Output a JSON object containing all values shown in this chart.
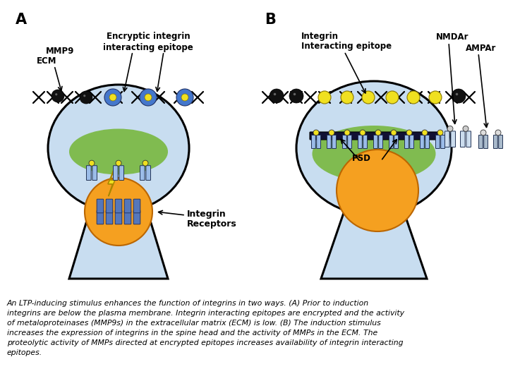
{
  "figure_width": 7.2,
  "figure_height": 5.4,
  "dpi": 100,
  "background_color": "#ffffff",
  "caption_line1": "An LTP-inducing stimulus enhances the function of integrins in two ways. (A) Prior to induction",
  "caption_line2": "integrins are below the plasma membrane. Integrin interacting epitopes are encrypted and the activity",
  "caption_line3": "of metaloproteinases (MMP9s) in the extracellular matrix (ECM) is low. (B) The induction stimulus",
  "caption_line4": "increases the expression of integrins in the spine head and the activity of MMPs in the ECM. The",
  "caption_line5": "proteolytic activity of MMPs directed at encrypted epitopes increases availability of integrin interacting",
  "caption_line6": "epitopes.",
  "caption_fontsize": 7.8,
  "spine_fill": "#c8ddf0",
  "spine_outline": "#000000",
  "green_fill": "#78b83e",
  "orange_fill": "#f5a020",
  "yellow_fill": "#f0e020",
  "blue_integrin": "#5577bb",
  "white": "#ffffff",
  "black": "#000000",
  "dark_navy": "#112255"
}
